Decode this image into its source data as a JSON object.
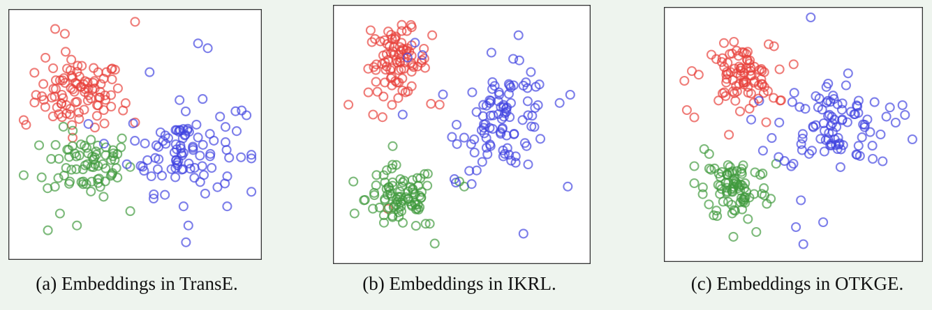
{
  "colors": {
    "red": "#e8403a",
    "green": "#3f9a3c",
    "blue": "#3f42e0"
  },
  "chart_data": [
    {
      "type": "scatter",
      "caption": "(a) Embeddings in TransE.",
      "xlim": [
        0,
        100
      ],
      "ylim": [
        0,
        100
      ],
      "series": [
        {
          "color": "red",
          "center": [
            27,
            67
          ],
          "spread": [
            9,
            7
          ],
          "count": 90,
          "outliers": [
            [
              50,
              97
            ],
            [
              17,
              94
            ],
            [
              21,
              92
            ],
            [
              13,
              82
            ],
            [
              45,
              60
            ],
            [
              50,
              55
            ],
            [
              5,
              54
            ],
            [
              4,
              56
            ]
          ]
        },
        {
          "color": "green",
          "center": [
            31,
            38
          ],
          "spread": [
            9,
            7
          ],
          "count": 70,
          "outliers": [
            [
              14,
              10
            ],
            [
              26,
              12
            ],
            [
              19,
              17
            ],
            [
              37,
              24
            ],
            [
              48,
              18
            ],
            [
              4,
              33
            ]
          ]
        },
        {
          "color": "blue",
          "center": [
            69,
            44
          ],
          "spread": [
            11,
            9
          ],
          "count": 90,
          "outliers": [
            [
              76,
              88
            ],
            [
              80,
              86
            ],
            [
              56,
              76
            ],
            [
              94,
              60
            ],
            [
              98,
              40
            ],
            [
              88,
              20
            ],
            [
              70,
              20
            ],
            [
              72,
              12
            ],
            [
              71,
              5
            ],
            [
              96,
              58
            ],
            [
              84,
              28
            ]
          ]
        }
      ]
    },
    {
      "type": "scatter",
      "caption": "(b) Embeddings in IKRL.",
      "xlim": [
        0,
        100
      ],
      "ylim": [
        0,
        100
      ],
      "series": [
        {
          "color": "red",
          "center": [
            24,
            79
          ],
          "spread": [
            6,
            6.5
          ],
          "count": 85,
          "outliers": [
            [
              13,
              92
            ],
            [
              4,
              62
            ],
            [
              14,
              58
            ],
            [
              38,
              90
            ],
            [
              41,
              62
            ],
            [
              20,
              20
            ]
          ]
        },
        {
          "color": "green",
          "center": [
            25,
            24
          ],
          "spread": [
            7,
            6.5
          ],
          "count": 85,
          "outliers": [
            [
              6,
              31
            ],
            [
              49,
              31
            ],
            [
              51,
              29
            ],
            [
              37,
              14
            ],
            [
              39,
              6
            ]
          ]
        },
        {
          "color": "blue",
          "center": [
            68,
            56
          ],
          "spread": [
            9,
            10
          ],
          "count": 90,
          "outliers": [
            [
              62,
              83
            ],
            [
              73,
              90
            ],
            [
              76,
              71
            ],
            [
              94,
              66
            ],
            [
              93,
              29
            ],
            [
              75,
              10
            ],
            [
              46,
              49
            ],
            [
              55,
              48
            ],
            [
              26,
              58
            ],
            [
              54,
              30
            ],
            [
              47,
              32
            ],
            [
              34,
              82
            ],
            [
              31,
              87
            ],
            [
              28,
              81
            ]
          ]
        }
      ]
    },
    {
      "type": "scatter",
      "caption": "(c) Embeddings in OTKGE.",
      "xlim": [
        0,
        100
      ],
      "ylim": [
        0,
        100
      ],
      "series": [
        {
          "color": "red",
          "center": [
            28,
            74
          ],
          "spread": [
            7,
            6
          ],
          "count": 80,
          "outliers": [
            [
              9,
              76
            ],
            [
              6,
              72
            ],
            [
              7,
              60
            ],
            [
              10,
              57
            ],
            [
              38,
              67
            ],
            [
              42,
              65
            ],
            [
              45,
              64
            ],
            [
              39,
              55
            ],
            [
              26,
              88
            ],
            [
              40,
              87
            ]
          ]
        },
        {
          "color": "green",
          "center": [
            27,
            28
          ],
          "spread": [
            6.5,
            7
          ],
          "count": 80,
          "outliers": [
            [
              10,
              37
            ],
            [
              10,
              30
            ],
            [
              16,
              42
            ],
            [
              14,
              44
            ],
            [
              35,
              10
            ],
            [
              43,
              38
            ]
          ]
        },
        {
          "color": "blue",
          "center": [
            65,
            54
          ],
          "spread": [
            11,
            9
          ],
          "count": 90,
          "outliers": [
            [
              57,
              98
            ],
            [
              98,
              48
            ],
            [
              94,
              62
            ],
            [
              95,
              58
            ],
            [
              86,
              39
            ],
            [
              82,
              40
            ],
            [
              51,
              12
            ],
            [
              54,
              5
            ],
            [
              62,
              14
            ],
            [
              53,
              23
            ],
            [
              50,
              38
            ]
          ]
        }
      ]
    }
  ]
}
